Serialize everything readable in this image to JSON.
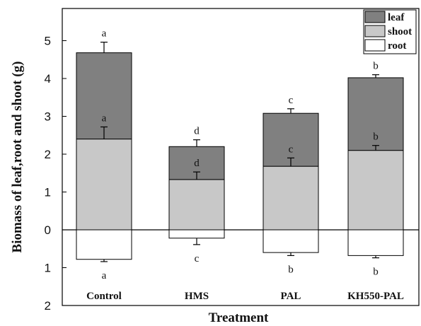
{
  "chart_data": {
    "type": "bar",
    "stacked": true,
    "categories": [
      "Control",
      "HMS",
      "PAL",
      "KH550-PAL"
    ],
    "xlabel": "Treatment",
    "ylabel": "Biomass of leaf,root and shoot (g)",
    "ylim": [
      -2,
      5.75
    ],
    "yticks": [
      -2,
      -1,
      0,
      1,
      2,
      3,
      4,
      5
    ],
    "ytick_labels": [
      "2",
      "1",
      "0",
      "1",
      "2",
      "3",
      "4",
      "5"
    ],
    "grid": false,
    "legend_position": "top-right",
    "series": [
      {
        "name": "shoot",
        "color": "#c8c8c8",
        "values": [
          2.4,
          1.33,
          1.68,
          2.1
        ],
        "errors": [
          0.32,
          0.2,
          0.22,
          0.13
        ],
        "letters": [
          "a",
          "d",
          "c",
          "b"
        ]
      },
      {
        "name": "leaf",
        "color": "#808080",
        "values": [
          2.28,
          0.87,
          1.4,
          1.92
        ],
        "errors": [
          0.28,
          0.18,
          0.12,
          0.08
        ],
        "letters": [
          "a",
          "d",
          "c",
          "b"
        ]
      },
      {
        "name": "root",
        "color": "#ffffff",
        "values": [
          -0.78,
          -0.22,
          -0.6,
          -0.68
        ],
        "errors": [
          0.06,
          0.17,
          0.08,
          0.06
        ],
        "letters": [
          "a",
          "c",
          "b",
          "b"
        ]
      }
    ],
    "legend_order": [
      "leaf",
      "shoot",
      "root"
    ]
  }
}
